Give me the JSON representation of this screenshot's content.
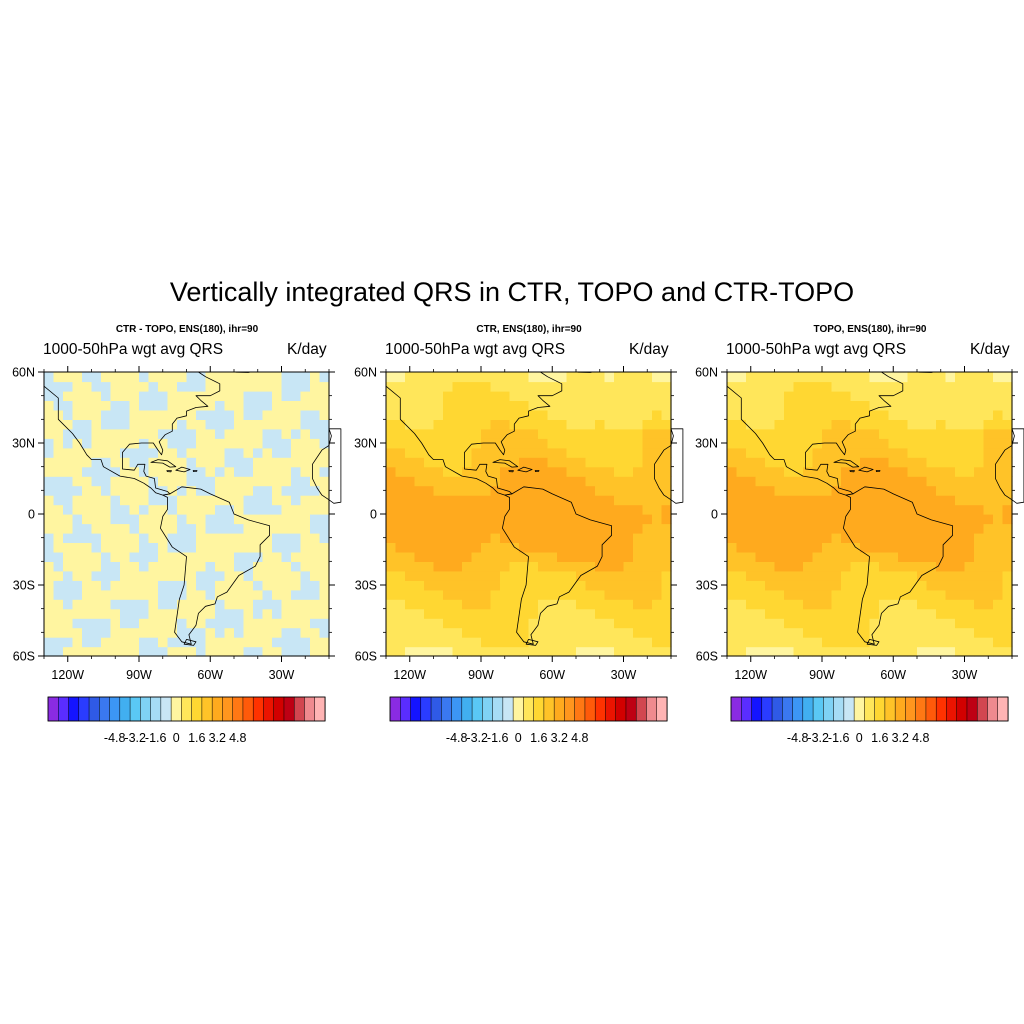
{
  "figure": {
    "title": "Vertically integrated QRS in CTR, TOPO and CTR-TOPO"
  },
  "colors": {
    "palette": [
      "#8a2be2",
      "#5a2dff",
      "#1414ff",
      "#2a3cff",
      "#2f5ae6",
      "#3a78f0",
      "#3c96f5",
      "#41aff0",
      "#5ac8f5",
      "#7fd2f5",
      "#a6dcf5",
      "#c8e6f5",
      "#fff5a0",
      "#ffe65a",
      "#ffd732",
      "#ffc328",
      "#ffaa1e",
      "#ff961e",
      "#ff7814",
      "#ff5a0a",
      "#ff3200",
      "#eb1400",
      "#d20000",
      "#be0014",
      "#d24650",
      "#ef8a8f",
      "#ffb4b4"
    ],
    "land_outline": "#000000"
  },
  "panels": [
    {
      "subtitle": "CTR - TOPO, ENS(180), ihr=90",
      "left_string": "1000-50hPa wgt avg QRS",
      "right_string": "K/day",
      "field": "difference"
    },
    {
      "subtitle": "CTR, ENS(180), ihr=90",
      "left_string": "1000-50hPa wgt avg QRS",
      "right_string": "K/day",
      "field": "heating"
    },
    {
      "subtitle": "TOPO, ENS(180), ihr=90",
      "left_string": "1000-50hPa wgt avg QRS",
      "right_string": "K/day",
      "field": "heating"
    }
  ],
  "axes": {
    "lat_labels": [
      "60N",
      "30N",
      "0",
      "30S",
      "60S"
    ],
    "lon_labels": [
      "120W",
      "90W",
      "60W",
      "30W"
    ]
  },
  "colorbar": {
    "labels": [
      "-4.8",
      "-3.2",
      "-1.6",
      "0",
      "1.6",
      "3.2",
      "4.8"
    ]
  }
}
